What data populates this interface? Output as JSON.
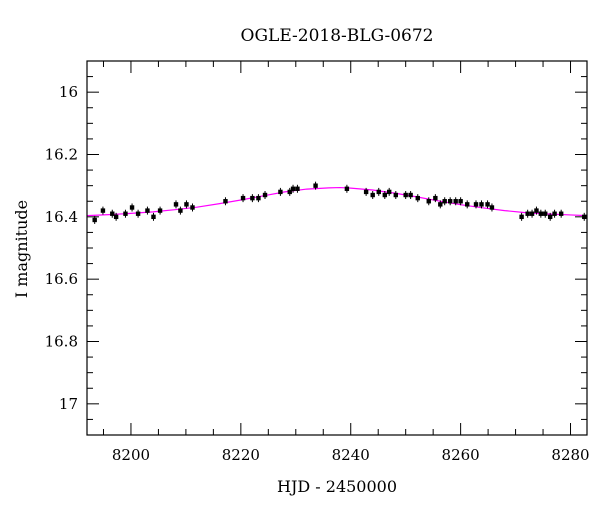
{
  "chart_data": {
    "type": "scatter",
    "title": "OGLE-2018-BLG-0672",
    "xlabel": "HJD - 2450000",
    "ylabel": "I magnitude",
    "xlim": [
      8192,
      8283
    ],
    "ylim": [
      15.9,
      17.1
    ],
    "y_inverted": true,
    "xticks": [
      8200,
      8220,
      8240,
      8260,
      8280
    ],
    "yticks": [
      16,
      16.2,
      16.4,
      16.6,
      16.8,
      17
    ],
    "ytick_labels": [
      "16",
      "16.2",
      "16.4",
      "16.6",
      "16.8",
      "17"
    ],
    "xtick_labels": [
      "8200",
      "8220",
      "8240",
      "8260",
      "8280"
    ],
    "grid": false,
    "colors": {
      "points": "#000000",
      "model": "#ff00ff"
    },
    "series": [
      {
        "kind": "points",
        "x": [
          8193.4,
          8194.9,
          8196.6,
          8197.3,
          8199.0,
          8200.2,
          8201.3,
          8203.0,
          8204.1,
          8205.3,
          8208.2,
          8209.0,
          8210.1,
          8211.2,
          8217.2,
          8220.4,
          8222.1,
          8223.2,
          8224.4,
          8227.2,
          8228.9,
          8229.5,
          8230.3,
          8233.6,
          8239.3,
          8242.8,
          8244.0,
          8245.1,
          8246.2,
          8247.0,
          8248.2,
          8250.0,
          8250.9,
          8252.2,
          8254.2,
          8255.4,
          8256.3,
          8257.1,
          8258.1,
          8259.1,
          8260.0,
          8261.2,
          8262.8,
          8263.8,
          8264.9,
          8265.7,
          8271.1,
          8272.2,
          8273.0,
          8273.8,
          8274.6,
          8275.4,
          8276.3,
          8277.1,
          8278.3,
          8282.5
        ],
        "y": [
          16.41,
          16.38,
          16.39,
          16.4,
          16.39,
          16.37,
          16.39,
          16.38,
          16.4,
          16.38,
          16.36,
          16.38,
          16.36,
          16.37,
          16.35,
          16.34,
          16.34,
          16.34,
          16.33,
          16.32,
          16.32,
          16.31,
          16.31,
          16.3,
          16.31,
          16.32,
          16.33,
          16.32,
          16.33,
          16.32,
          16.33,
          16.33,
          16.33,
          16.34,
          16.35,
          16.34,
          16.36,
          16.35,
          16.35,
          16.35,
          16.35,
          16.36,
          16.36,
          16.36,
          16.36,
          16.37,
          16.4,
          16.39,
          16.39,
          16.38,
          16.39,
          16.39,
          16.4,
          16.39,
          16.39,
          16.4
        ]
      },
      {
        "kind": "model",
        "x": [
          8192,
          8196,
          8200,
          8204,
          8208,
          8212,
          8216,
          8220,
          8224,
          8228,
          8232,
          8236,
          8238,
          8240,
          8244,
          8248,
          8252,
          8256,
          8260,
          8264,
          8268,
          8272,
          8276,
          8280,
          8283
        ],
        "y": [
          16.396,
          16.393,
          16.389,
          16.384,
          16.377,
          16.369,
          16.358,
          16.346,
          16.333,
          16.32,
          16.311,
          16.307,
          16.306,
          16.308,
          16.314,
          16.324,
          16.336,
          16.349,
          16.361,
          16.371,
          16.38,
          16.387,
          16.391,
          16.394,
          16.396
        ]
      }
    ]
  }
}
